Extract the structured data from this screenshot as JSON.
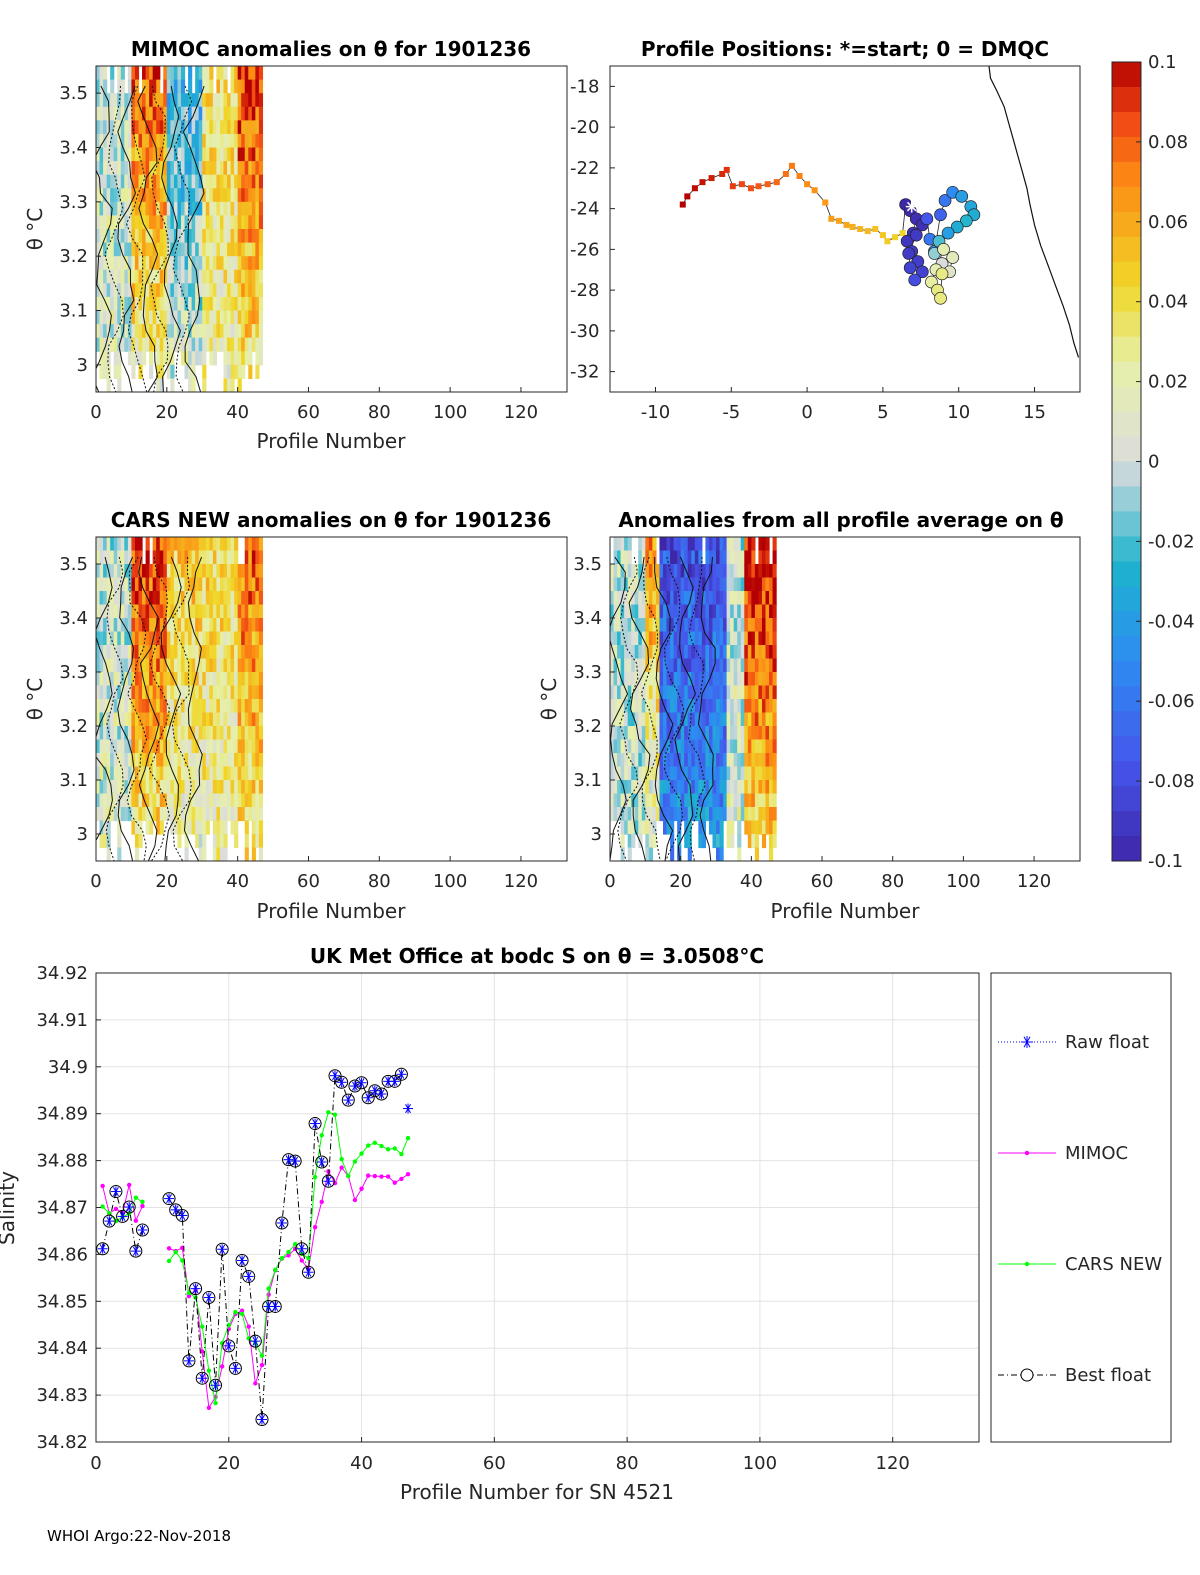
{
  "figure": {
    "footer": "WHOI Argo:22-Nov-2018",
    "colors": {
      "raw_float": "#0000ff",
      "mimoc": "#ff00ff",
      "cars": "#00ff00",
      "best": "#000000"
    }
  },
  "panels": {
    "mimoc": {
      "title": "MIMOC anomalies on θ  for 1901236",
      "xlabel": "Profile Number",
      "ylabel": "θ °C",
      "xticks": [
        "0",
        "20",
        "40",
        "60",
        "80",
        "100",
        "120"
      ],
      "yticks": [
        "3",
        "3.1",
        "3.2",
        "3.3",
        "3.4",
        "3.5"
      ]
    },
    "positions": {
      "title": "Profile Positions: *=start; 0 = DMQC",
      "xticks": [
        "-10",
        "-5",
        "0",
        "5",
        "10",
        "15"
      ],
      "yticks": [
        "-18",
        "-20",
        "-22",
        "-24",
        "-26",
        "-28",
        "-30",
        "-32"
      ]
    },
    "cars": {
      "title": "CARS NEW anomalies on θ for 1901236",
      "xlabel": "Profile Number",
      "ylabel": "θ °C",
      "xticks": [
        "0",
        "20",
        "40",
        "60",
        "80",
        "100",
        "120"
      ],
      "yticks": [
        "3",
        "3.1",
        "3.2",
        "3.3",
        "3.4",
        "3.5"
      ]
    },
    "avg": {
      "title": "Anomalies from all profile average on θ",
      "xlabel": "Profile Number",
      "ylabel": "θ °C",
      "xticks": [
        "0",
        "20",
        "40",
        "60",
        "80",
        "100",
        "120"
      ],
      "yticks": [
        "3",
        "3.1",
        "3.2",
        "3.3",
        "3.4",
        "3.5"
      ]
    },
    "colorbar": {
      "ticks": [
        "0.1",
        "0.08",
        "0.06",
        "0.04",
        "0.02",
        "0",
        "-0.02",
        "-0.04",
        "-0.06",
        "-0.08",
        "-0.1"
      ]
    },
    "salinity": {
      "title": "UK Met Office at bodc S on θ = 3.0508°C",
      "xlabel": "Profile Number for SN 4521",
      "ylabel": "Salinity",
      "xticks": [
        "0",
        "20",
        "40",
        "60",
        "80",
        "100",
        "120"
      ],
      "yticks": [
        "34.92",
        "34.91",
        "34.9",
        "34.89",
        "34.88",
        "34.87",
        "34.86",
        "34.85",
        "34.84",
        "34.83",
        "34.82"
      ],
      "legend": [
        "Raw float",
        "MIMOC",
        "CARS NEW",
        "Best float"
      ]
    }
  },
  "chart_data": [
    {
      "type": "heatmap",
      "title": "MIMOC anomalies on θ  for 1901236",
      "xlabel": "Profile Number",
      "ylabel": "θ °C",
      "xlim": [
        0,
        133
      ],
      "ylim": [
        2.95,
        3.55
      ],
      "colorbar_range": [
        -0.1,
        0.1
      ],
      "profiles": 47,
      "theta_levels": [
        3.0,
        3.05,
        3.1,
        3.15,
        3.2,
        3.25,
        3.3,
        3.35,
        3.4,
        3.45,
        3.5
      ],
      "profile_groups": [
        {
          "profiles": "1-10",
          "anomaly_upper": 0.0,
          "anomaly_lower": 0.01
        },
        {
          "profiles": "11-20",
          "anomaly_upper": 0.08,
          "anomaly_lower": 0.02
        },
        {
          "profiles": "21-30",
          "anomaly_upper": -0.03,
          "anomaly_lower": 0.01
        },
        {
          "profiles": "31-40",
          "anomaly_upper": 0.04,
          "anomaly_lower": 0.02
        },
        {
          "profiles": "41-47",
          "anomaly_upper": 0.09,
          "anomaly_lower": 0.03
        }
      ]
    },
    {
      "type": "scatter",
      "title": "Profile Positions: *=start; 0 = DMQC",
      "xlim": [
        -13,
        18
      ],
      "ylim": [
        -33,
        -17
      ],
      "track": {
        "lon": [
          -8.2,
          -7.9,
          -7.4,
          -6.9,
          -6.3,
          -5.6,
          -5.3,
          -4.9,
          -4.3,
          -3.7,
          -3.2,
          -2.6,
          -2.0,
          -1.4,
          -1.0,
          -0.5,
          0.0,
          0.5,
          1.2,
          1.6,
          2.1,
          2.6,
          3.0,
          3.5,
          4.0,
          4.5,
          5.0,
          5.3,
          5.8,
          6.3
        ],
        "lat": [
          -23.8,
          -23.4,
          -23.0,
          -22.7,
          -22.5,
          -22.3,
          -22.1,
          -22.9,
          -22.8,
          -23.0,
          -22.9,
          -22.8,
          -22.7,
          -22.3,
          -21.9,
          -22.4,
          -22.8,
          -23.1,
          -23.7,
          -24.5,
          -24.6,
          -24.8,
          -24.9,
          -25.0,
          -25.1,
          -25.0,
          -25.3,
          -25.6,
          -25.4,
          -25.2
        ],
        "anomaly": [
          0.1,
          0.1,
          0.098,
          0.096,
          0.094,
          0.092,
          0.09,
          0.088,
          0.086,
          0.084,
          0.082,
          0.08,
          0.078,
          0.076,
          0.074,
          0.072,
          0.07,
          0.068,
          0.066,
          0.064,
          0.062,
          0.06,
          0.058,
          0.056,
          0.054,
          0.052,
          0.05,
          0.048,
          0.046,
          0.044
        ]
      },
      "cluster": {
        "lon": [
          6.5,
          6.8,
          7.2,
          7.0,
          6.6,
          6.9,
          7.3,
          7.6,
          7.1,
          6.8,
          6.7,
          7.2,
          7.6,
          7.9,
          8.1,
          8.4,
          8.8,
          9.1,
          9.6,
          10.2,
          10.8,
          11.0,
          10.5,
          9.9,
          9.3,
          8.7,
          8.4,
          8.9,
          9.4,
          9.6,
          9.0,
          8.5,
          8.2,
          8.6,
          8.8,
          8.9
        ],
        "lat": [
          -23.8,
          -24.1,
          -24.5,
          -25.2,
          -25.6,
          -26.1,
          -26.6,
          -27.1,
          -27.5,
          -26.9,
          -26.2,
          -25.3,
          -24.8,
          -24.5,
          -25.5,
          -26.1,
          -24.3,
          -23.6,
          -23.2,
          -23.4,
          -23.9,
          -24.3,
          -24.6,
          -24.9,
          -25.2,
          -25.6,
          -26.2,
          -26.7,
          -27.1,
          -26.4,
          -26.0,
          -27.0,
          -27.6,
          -28.0,
          -28.4,
          -27.2
        ],
        "anomaly": [
          -0.1,
          -0.098,
          -0.096,
          -0.094,
          -0.092,
          -0.09,
          -0.088,
          -0.086,
          -0.08,
          -0.085,
          -0.09,
          -0.09,
          -0.095,
          -0.075,
          -0.06,
          -0.05,
          -0.07,
          -0.06,
          -0.05,
          -0.04,
          -0.035,
          -0.03,
          -0.025,
          -0.03,
          -0.04,
          -0.02,
          -0.01,
          0.0,
          0.01,
          0.015,
          0.02,
          0.02,
          0.025,
          0.03,
          0.03,
          0.03
        ]
      },
      "start": {
        "lon": 6.9,
        "lat": -23.9
      },
      "coastline": {
        "lon": [
          12.0,
          12.1,
          12.5,
          13.0,
          13.3,
          13.6,
          13.9,
          14.2,
          14.5,
          14.7,
          15.0,
          15.4,
          15.9,
          16.4,
          16.9,
          17.3,
          17.6,
          17.9
        ],
        "lat": [
          -17.0,
          -17.6,
          -18.2,
          -19.0,
          -19.8,
          -20.6,
          -21.4,
          -22.2,
          -23.0,
          -23.8,
          -24.8,
          -25.8,
          -26.8,
          -27.8,
          -28.8,
          -29.7,
          -30.6,
          -31.3
        ]
      }
    },
    {
      "type": "heatmap",
      "title": "CARS NEW anomalies on θ for 1901236",
      "xlabel": "Profile Number",
      "ylabel": "θ °C",
      "xlim": [
        0,
        133
      ],
      "ylim": [
        2.95,
        3.55
      ],
      "colorbar_range": [
        -0.1,
        0.1
      ],
      "profiles": 47,
      "profile_groups": [
        {
          "profiles": "1-10",
          "anomaly_upper": 0.0,
          "anomaly_lower": 0.01
        },
        {
          "profiles": "11-20",
          "anomaly_upper": 0.09,
          "anomaly_lower": 0.03
        },
        {
          "profiles": "21-30",
          "anomaly_upper": 0.05,
          "anomaly_lower": 0.015
        },
        {
          "profiles": "31-40",
          "anomaly_upper": 0.04,
          "anomaly_lower": 0.02
        },
        {
          "profiles": "41-47",
          "anomaly_upper": 0.08,
          "anomaly_lower": 0.03
        }
      ]
    },
    {
      "type": "heatmap",
      "title": "Anomalies from all profile average on θ",
      "xlabel": "Profile Number",
      "ylabel": "θ °C",
      "xlim": [
        0,
        133
      ],
      "ylim": [
        2.95,
        3.55
      ],
      "colorbar_range": [
        -0.1,
        0.1
      ],
      "profiles": 47,
      "profile_groups": [
        {
          "profiles": "1-10",
          "anomaly_upper": 0.0,
          "anomaly_lower": 0.0
        },
        {
          "profiles": "11-14",
          "anomaly_upper": 0.07,
          "anomaly_lower": 0.0
        },
        {
          "profiles": "15-33",
          "anomaly_upper": -0.08,
          "anomaly_lower": -0.04
        },
        {
          "profiles": "34-38",
          "anomaly_upper": 0.0,
          "anomaly_lower": 0.01
        },
        {
          "profiles": "39-47",
          "anomaly_upper": 0.1,
          "anomaly_lower": 0.04
        }
      ]
    },
    {
      "type": "line",
      "title": "UK Met Office at bodc S on θ = 3.0508°C",
      "xlabel": "Profile Number for SN 4521",
      "ylabel": "Salinity",
      "xlim": [
        0,
        133
      ],
      "ylim": [
        34.82,
        34.92
      ],
      "grid": true,
      "legend": "outside-right",
      "x": [
        1,
        2,
        3,
        4,
        5,
        6,
        7,
        8,
        9,
        10,
        11,
        12,
        13,
        14,
        15,
        16,
        17,
        18,
        19,
        20,
        21,
        22,
        23,
        24,
        25,
        26,
        27,
        28,
        29,
        30,
        31,
        32,
        33,
        34,
        35,
        36,
        37,
        38,
        39,
        40,
        41,
        42,
        43,
        44,
        45,
        46,
        47
      ],
      "series": [
        {
          "name": "Raw float",
          "style": "blue asterisk dotted",
          "values": [
            34.8612,
            34.8671,
            34.8734,
            34.8681,
            34.8701,
            34.8607,
            34.8652,
            null,
            null,
            null,
            34.8719,
            34.8695,
            34.8683,
            34.8373,
            34.8527,
            34.8336,
            34.8508,
            34.8321,
            34.8611,
            34.8405,
            34.8357,
            34.8587,
            34.8553,
            34.8415,
            34.8248,
            34.8489,
            34.8489,
            34.8667,
            34.8802,
            34.8799,
            34.8612,
            34.8562,
            34.8879,
            34.8797,
            34.8756,
            34.8981,
            34.8967,
            34.8929,
            34.8959,
            34.8966,
            34.8934,
            34.8949,
            34.8942,
            34.8969,
            34.8969,
            34.8984,
            34.8911
          ]
        },
        {
          "name": "MIMOC",
          "style": "magenta dot solid",
          "values": [
            34.8746,
            34.8687,
            34.8697,
            34.8688,
            34.8748,
            34.8672,
            34.8703,
            null,
            null,
            null,
            34.8613,
            34.8607,
            34.8614,
            34.8511,
            34.8524,
            34.8393,
            34.8273,
            34.8296,
            34.8361,
            34.8441,
            34.8473,
            34.848,
            34.8446,
            34.8325,
            34.8364,
            34.8514,
            34.8566,
            34.8591,
            34.8598,
            34.8612,
            34.8587,
            34.8568,
            34.8658,
            34.8712,
            34.8777,
            34.8752,
            34.8785,
            34.8767,
            34.8716,
            34.874,
            34.8768,
            34.8767,
            34.8766,
            34.8766,
            34.8753,
            34.8761,
            34.8771
          ]
        },
        {
          "name": "CARS NEW",
          "style": "green dot solid",
          "values": [
            34.8702,
            34.8688,
            34.8671,
            34.868,
            34.8687,
            34.8721,
            34.8712,
            null,
            null,
            null,
            34.8586,
            34.8605,
            34.8587,
            34.8518,
            34.8508,
            34.8446,
            34.8352,
            34.8283,
            34.8411,
            34.8449,
            34.8477,
            34.8473,
            34.8421,
            34.8411,
            34.8384,
            34.8527,
            34.8567,
            34.8592,
            34.8605,
            34.8622,
            34.8601,
            34.8592,
            34.8765,
            34.8854,
            34.8903,
            34.8898,
            34.8803,
            34.8767,
            34.8798,
            34.8815,
            34.8832,
            34.8838,
            34.8831,
            34.8824,
            34.8826,
            34.8814,
            34.8848
          ]
        },
        {
          "name": "Best float",
          "style": "black circle dash-dot",
          "values": [
            34.8612,
            34.8671,
            34.8734,
            34.8681,
            34.8701,
            34.8607,
            34.8652,
            null,
            null,
            null,
            34.8719,
            34.8695,
            34.8683,
            34.8373,
            34.8527,
            34.8336,
            34.8508,
            34.8321,
            34.8611,
            34.8405,
            34.8357,
            34.8587,
            34.8553,
            34.8415,
            34.8248,
            34.8489,
            34.8489,
            34.8667,
            34.8802,
            34.8799,
            34.8612,
            34.8562,
            34.8879,
            34.8797,
            34.8756,
            34.8981,
            34.8967,
            34.8929,
            34.8959,
            34.8966,
            34.8934,
            34.8949,
            34.8942,
            34.8969,
            34.8969,
            34.8984,
            null
          ]
        }
      ]
    }
  ]
}
